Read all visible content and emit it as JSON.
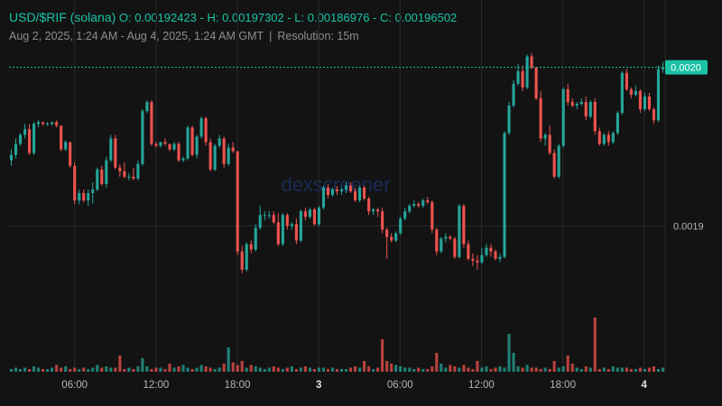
{
  "header": {
    "pair": "USD/$RIF (solana)",
    "ohlc": "O: 0.00192423 - H: 0.00197302 - L: 0.00186976 - C: 0.00196502",
    "range": "Aug 2, 2025, 1:24 AM - Aug 4, 2025, 1:24 AM GMT",
    "separator": "|",
    "resolution": "Resolution: 15m"
  },
  "watermark": "dexscreener",
  "colors": {
    "up": "#26a69a",
    "down": "#ef5350",
    "bg": "#131313",
    "accent": "#19c3a6"
  },
  "chart_data": {
    "type": "candlestick",
    "x_ticks": [
      "06:00",
      "12:00",
      "18:00",
      "3",
      "06:00",
      "12:00",
      "18:00",
      "4"
    ],
    "y_ticks": [
      "0.0019"
    ],
    "last_price_label": "0.0020",
    "ylim": [
      0.00182,
      0.00202
    ],
    "grid": true,
    "candles": [
      [
        0.001936,
        0.001942,
        0.001933,
        0.001939
      ],
      [
        0.001939,
        0.001948,
        0.001937,
        0.001945
      ],
      [
        0.001945,
        0.001951,
        0.001944,
        0.00195
      ],
      [
        0.00195,
        0.001956,
        0.001948,
        0.001953
      ],
      [
        0.001953,
        0.001956,
        0.001939,
        0.00194
      ],
      [
        0.00194,
        0.001957,
        0.001939,
        0.001956
      ],
      [
        0.001956,
        0.001958,
        0.001954,
        0.001957
      ],
      [
        0.001957,
        0.001957,
        0.001955,
        0.001956
      ],
      [
        0.001956,
        0.001957,
        0.001955,
        0.001956
      ],
      [
        0.001956,
        0.001957,
        0.001955,
        0.001957
      ],
      [
        0.001957,
        0.001958,
        0.001954,
        0.001955
      ],
      [
        0.001955,
        0.001955,
        0.001941,
        0.001942
      ],
      [
        0.001942,
        0.001947,
        0.001941,
        0.001946
      ],
      [
        0.001946,
        0.001946,
        0.001932,
        0.001933
      ],
      [
        0.001933,
        0.001935,
        0.001912,
        0.001914
      ],
      [
        0.001914,
        0.00192,
        0.001912,
        0.001918
      ],
      [
        0.001918,
        0.00192,
        0.001913,
        0.001914
      ],
      [
        0.001914,
        0.00192,
        0.001911,
        0.001918
      ],
      [
        0.001918,
        0.001924,
        0.001912,
        0.00192
      ],
      [
        0.00192,
        0.001932,
        0.001919,
        0.001931
      ],
      [
        0.001931,
        0.001933,
        0.001922,
        0.001923
      ],
      [
        0.001923,
        0.001938,
        0.001921,
        0.001936
      ],
      [
        0.001936,
        0.00195,
        0.001935,
        0.001948
      ],
      [
        0.001948,
        0.00195,
        0.001931,
        0.001932
      ],
      [
        0.001932,
        0.001934,
        0.001927,
        0.00193
      ],
      [
        0.00193,
        0.001935,
        0.001926,
        0.001927
      ],
      [
        0.001927,
        0.001929,
        0.001925,
        0.001927
      ],
      [
        0.001927,
        0.001932,
        0.001925,
        0.001926
      ],
      [
        0.001926,
        0.001936,
        0.001925,
        0.001934
      ],
      [
        0.001934,
        0.001964,
        0.001933,
        0.001963
      ],
      [
        0.001963,
        0.001969,
        0.001962,
        0.001968
      ],
      [
        0.001968,
        0.001969,
        0.001944,
        0.001945
      ],
      [
        0.001945,
        0.001946,
        0.001943,
        0.001944
      ],
      [
        0.001944,
        0.001946,
        0.001943,
        0.001946
      ],
      [
        0.001946,
        0.001948,
        0.001944,
        0.001945
      ],
      [
        0.001945,
        0.001945,
        0.001941,
        0.001942
      ],
      [
        0.001942,
        0.001946,
        0.001941,
        0.001945
      ],
      [
        0.001945,
        0.001946,
        0.001935,
        0.001936
      ],
      [
        0.001936,
        0.001938,
        0.001935,
        0.001937
      ],
      [
        0.001937,
        0.001955,
        0.001936,
        0.001954
      ],
      [
        0.001954,
        0.001955,
        0.001938,
        0.001939
      ],
      [
        0.001939,
        0.00195,
        0.001937,
        0.001949
      ],
      [
        0.001949,
        0.00196,
        0.001948,
        0.001959
      ],
      [
        0.001959,
        0.00196,
        0.001944,
        0.001946
      ],
      [
        0.001946,
        0.001948,
        0.00193,
        0.001931
      ],
      [
        0.001931,
        0.001945,
        0.00193,
        0.001944
      ],
      [
        0.001944,
        0.00195,
        0.001943,
        0.001948
      ],
      [
        0.001948,
        0.001949,
        0.001932,
        0.001934
      ],
      [
        0.001934,
        0.001945,
        0.001933,
        0.001943
      ],
      [
        0.001943,
        0.001946,
        0.00194,
        0.001941
      ],
      [
        0.001941,
        0.001941,
        0.001884,
        0.001886
      ],
      [
        0.001886,
        0.001889,
        0.001874,
        0.001876
      ],
      [
        0.001876,
        0.001891,
        0.001875,
        0.00189
      ],
      [
        0.00189,
        0.001892,
        0.001885,
        0.001887
      ],
      [
        0.001887,
        0.001901,
        0.001886,
        0.001899
      ],
      [
        0.001899,
        0.001911,
        0.001898,
        0.001906
      ],
      [
        0.001906,
        0.001908,
        0.001903,
        0.001906
      ],
      [
        0.001906,
        0.001908,
        0.001904,
        0.001906
      ],
      [
        0.001906,
        0.001908,
        0.001901,
        0.001902
      ],
      [
        0.001902,
        0.001907,
        0.001889,
        0.00189
      ],
      [
        0.00189,
        0.001907,
        0.001889,
        0.001906
      ],
      [
        0.001906,
        0.001907,
        0.001898,
        0.0019
      ],
      [
        0.0019,
        0.001902,
        0.001898,
        0.001901
      ],
      [
        0.001901,
        0.001904,
        0.00189,
        0.001892
      ],
      [
        0.001892,
        0.001909,
        0.001891,
        0.001908
      ],
      [
        0.001908,
        0.00191,
        0.001903,
        0.001905
      ],
      [
        0.001905,
        0.00191,
        0.001904,
        0.001909
      ],
      [
        0.001909,
        0.00191,
        0.0019,
        0.001901
      ],
      [
        0.001901,
        0.001911,
        0.0019,
        0.00191
      ],
      [
        0.00191,
        0.001922,
        0.001909,
        0.001921
      ],
      [
        0.001921,
        0.001923,
        0.001915,
        0.001917
      ],
      [
        0.001917,
        0.001921,
        0.001916,
        0.00192
      ],
      [
        0.00192,
        0.001922,
        0.001917,
        0.001919
      ],
      [
        0.001919,
        0.001921,
        0.001917,
        0.00192
      ],
      [
        0.00192,
        0.001924,
        0.001918,
        0.001922
      ],
      [
        0.001922,
        0.001924,
        0.001918,
        0.001919
      ],
      [
        0.001919,
        0.001921,
        0.001913,
        0.001914
      ],
      [
        0.001914,
        0.001922,
        0.001913,
        0.001921
      ],
      [
        0.001921,
        0.001922,
        0.001914,
        0.001915
      ],
      [
        0.001915,
        0.001916,
        0.001906,
        0.001908
      ],
      [
        0.001908,
        0.00191,
        0.001906,
        0.001909
      ],
      [
        0.001909,
        0.00191,
        0.001905,
        0.001908
      ],
      [
        0.001908,
        0.00191,
        0.001896,
        0.001898
      ],
      [
        0.001898,
        0.001899,
        0.001882,
        0.001894
      ],
      [
        0.001894,
        0.001896,
        0.001891,
        0.001892
      ],
      [
        0.001892,
        0.001897,
        0.001891,
        0.001896
      ],
      [
        0.001896,
        0.001905,
        0.001895,
        0.001904
      ],
      [
        0.001904,
        0.00191,
        0.001903,
        0.001908
      ],
      [
        0.001908,
        0.001912,
        0.001907,
        0.001911
      ],
      [
        0.001911,
        0.001914,
        0.00191,
        0.001912
      ],
      [
        0.001912,
        0.001913,
        0.00191,
        0.001911
      ],
      [
        0.001911,
        0.001915,
        0.00191,
        0.001914
      ],
      [
        0.001914,
        0.001916,
        0.001912,
        0.001913
      ],
      [
        0.001913,
        0.001914,
        0.001896,
        0.001898
      ],
      [
        0.001898,
        0.001899,
        0.001884,
        0.001886
      ],
      [
        0.001886,
        0.001894,
        0.001885,
        0.001893
      ],
      [
        0.001893,
        0.001896,
        0.001891,
        0.001894
      ],
      [
        0.001894,
        0.001895,
        0.001892,
        0.001893
      ],
      [
        0.001893,
        0.001894,
        0.001882,
        0.001883
      ],
      [
        0.001883,
        0.001912,
        0.001882,
        0.001911
      ],
      [
        0.001911,
        0.001912,
        0.001888,
        0.00189
      ],
      [
        0.00189,
        0.001892,
        0.001881,
        0.001882
      ],
      [
        0.001882,
        0.001885,
        0.001878,
        0.001881
      ],
      [
        0.001881,
        0.001884,
        0.001876,
        0.00188
      ],
      [
        0.00188,
        0.001888,
        0.001879,
        0.001884
      ],
      [
        0.001884,
        0.00189,
        0.001883,
        0.001888
      ],
      [
        0.001888,
        0.00189,
        0.001883,
        0.001886
      ],
      [
        0.001886,
        0.001887,
        0.001881,
        0.001882
      ],
      [
        0.001882,
        0.001885,
        0.00188,
        0.001883
      ],
      [
        0.001883,
        0.001952,
        0.001882,
        0.001951
      ],
      [
        0.001951,
        0.001968,
        0.00195,
        0.001966
      ],
      [
        0.001966,
        0.00198,
        0.001965,
        0.001978
      ],
      [
        0.001978,
        0.001989,
        0.001977,
        0.001985
      ],
      [
        0.001985,
        0.001988,
        0.001974,
        0.001976
      ],
      [
        0.001976,
        0.001994,
        0.001975,
        0.001993
      ],
      [
        0.001993,
        0.001995,
        0.001986,
        0.001987
      ],
      [
        0.001987,
        0.001987,
        0.001969,
        0.00197
      ],
      [
        0.00197,
        0.001974,
        0.001946,
        0.001948
      ],
      [
        0.001948,
        0.001951,
        0.001944,
        0.00195
      ],
      [
        0.00195,
        0.001955,
        0.001939,
        0.00194
      ],
      [
        0.00194,
        0.001942,
        0.001926,
        0.001927
      ],
      [
        0.001927,
        0.001945,
        0.001926,
        0.001944
      ],
      [
        0.001944,
        0.001976,
        0.001943,
        0.001975
      ],
      [
        0.001975,
        0.001978,
        0.001966,
        0.001968
      ],
      [
        0.001968,
        0.00197,
        0.001965,
        0.001966
      ],
      [
        0.001966,
        0.001968,
        0.001964,
        0.001967
      ],
      [
        0.001967,
        0.00197,
        0.001966,
        0.001968
      ],
      [
        0.001968,
        0.001971,
        0.001958,
        0.00196
      ],
      [
        0.00196,
        0.001969,
        0.001959,
        0.001968
      ],
      [
        0.001968,
        0.00197,
        0.00195,
        0.001952
      ],
      [
        0.001952,
        0.001954,
        0.001944,
        0.001945
      ],
      [
        0.001945,
        0.001951,
        0.001944,
        0.00195
      ],
      [
        0.00195,
        0.001952,
        0.001944,
        0.001946
      ],
      [
        0.001946,
        0.001952,
        0.001945,
        0.001951
      ],
      [
        0.001951,
        0.001963,
        0.00195,
        0.001962
      ],
      [
        0.001962,
        0.001985,
        0.001961,
        0.001984
      ],
      [
        0.001984,
        0.001986,
        0.001974,
        0.001975
      ],
      [
        0.001975,
        0.001976,
        0.00197,
        0.001972
      ],
      [
        0.001972,
        0.001977,
        0.001971,
        0.001974
      ],
      [
        0.001974,
        0.001975,
        0.001962,
        0.001964
      ],
      [
        0.001964,
        0.001973,
        0.001963,
        0.001971
      ],
      [
        0.001971,
        0.001973,
        0.001963,
        0.001964
      ],
      [
        0.001964,
        0.001965,
        0.001956,
        0.001958
      ],
      [
        0.001958,
        0.001988,
        0.001957,
        0.001986
      ],
      [
        0.001986,
        0.00199,
        0.001984,
        0.001987
      ]
    ],
    "volumes": [
      2,
      3,
      2,
      3,
      2,
      4,
      3,
      2,
      2,
      3,
      5,
      3,
      4,
      2,
      3,
      2,
      3,
      2,
      3,
      5,
      3,
      4,
      3,
      3,
      12,
      2,
      3,
      2,
      4,
      10,
      4,
      2,
      3,
      3,
      2,
      6,
      3,
      4,
      5,
      3,
      2,
      3,
      5,
      4,
      3,
      2,
      3,
      6,
      18,
      7,
      5,
      8,
      3,
      5,
      4,
      3,
      2,
      3,
      4,
      3,
      2,
      3,
      4,
      2,
      3,
      4,
      3,
      2,
      3,
      3,
      2,
      3,
      2,
      2,
      2,
      3,
      4,
      3,
      8,
      4,
      2,
      3,
      24,
      8,
      6,
      5,
      4,
      3,
      3,
      2,
      3,
      2,
      2,
      4,
      14,
      6,
      3,
      5,
      4,
      3,
      5,
      3,
      2,
      8,
      3,
      4,
      2,
      3,
      4,
      3,
      28,
      14,
      4,
      3,
      5,
      3,
      3,
      2,
      3,
      2,
      8,
      3,
      4,
      12,
      6,
      3,
      2,
      4,
      3,
      40,
      2,
      3,
      2,
      4,
      3,
      3,
      3,
      2,
      2,
      3,
      2,
      3,
      4,
      2,
      3
    ]
  }
}
